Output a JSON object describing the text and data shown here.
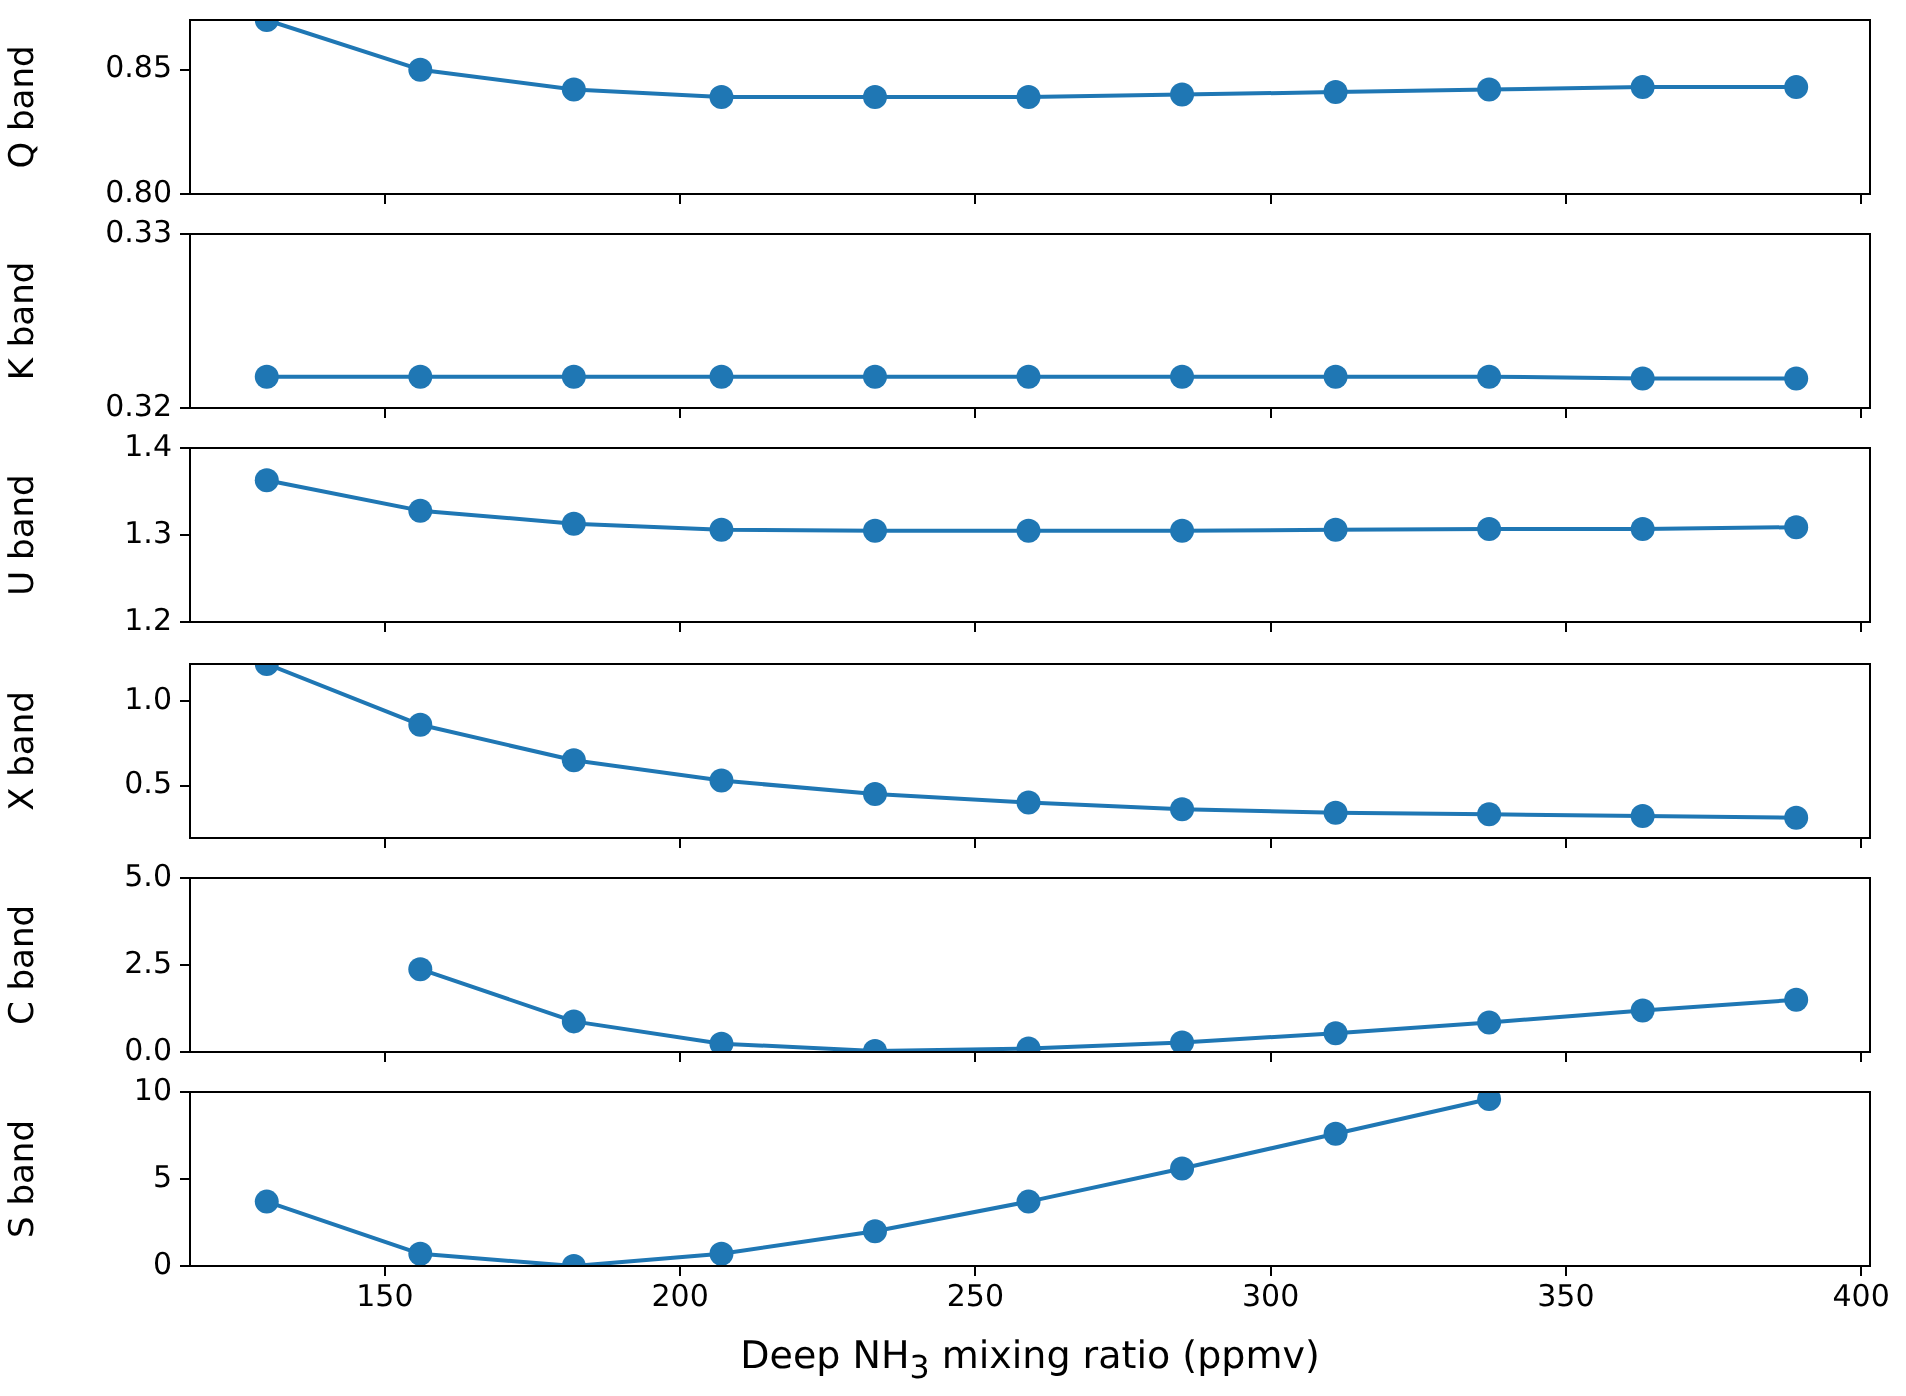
{
  "chart_data": [
    {
      "type": "line",
      "ylabel": "Q band",
      "x": [
        130,
        156,
        182,
        207,
        233,
        259,
        285,
        311,
        337,
        363,
        389
      ],
      "xlim": [
        117,
        401.5
      ],
      "xticks": [
        150,
        200,
        250,
        300,
        350,
        400
      ],
      "ylim": [
        0.8,
        0.87
      ],
      "yticks": [
        {
          "value": 0.8,
          "label": "0.80"
        },
        {
          "value": 0.85,
          "label": "0.85"
        }
      ],
      "tick_labels": "y",
      "grid": false,
      "marker": "circle",
      "legend": false,
      "series": [
        {
          "color": "#1f77b4",
          "values": [
            0.87,
            0.85,
            0.842,
            0.839,
            0.839,
            0.839,
            0.84,
            0.841,
            0.842,
            0.843,
            0.843
          ]
        }
      ]
    },
    {
      "type": "line",
      "ylabel": "K band",
      "x": [
        130,
        156,
        182,
        207,
        233,
        259,
        285,
        311,
        337,
        363,
        389
      ],
      "xlim": [
        117,
        401.5
      ],
      "xticks": [
        150,
        200,
        250,
        300,
        350,
        400
      ],
      "ylim": [
        0.32,
        0.33
      ],
      "yticks": [
        0.32,
        0.33
      ],
      "tick_labels": "y",
      "grid": false,
      "marker": "circle",
      "legend": false,
      "series": [
        {
          "color": "#1f77b4",
          "values": [
            0.3218,
            0.3218,
            0.3218,
            0.3218,
            0.3218,
            0.3218,
            0.3218,
            0.3218,
            0.3218,
            0.3217,
            0.3217
          ]
        }
      ]
    },
    {
      "type": "line",
      "ylabel": "U band",
      "x": [
        130,
        156,
        182,
        207,
        233,
        259,
        285,
        311,
        337,
        363,
        389
      ],
      "xlim": [
        117,
        401.5
      ],
      "xticks": [
        150,
        200,
        250,
        300,
        350,
        400
      ],
      "ylim": [
        1.2,
        1.4
      ],
      "yticks": [
        1.2,
        1.3,
        1.4
      ],
      "tick_labels": "y",
      "grid": false,
      "marker": "circle",
      "legend": false,
      "series": [
        {
          "color": "#1f77b4",
          "values": [
            1.363,
            1.328,
            1.313,
            1.306,
            1.305,
            1.305,
            1.305,
            1.306,
            1.307,
            1.307,
            1.309
          ]
        }
      ]
    },
    {
      "type": "line",
      "ylabel": "X band",
      "x": [
        130,
        156,
        182,
        207,
        233,
        259,
        285,
        311,
        337,
        363,
        389
      ],
      "xlim": [
        117,
        401.5
      ],
      "xticks": [
        150,
        200,
        250,
        300,
        350,
        400
      ],
      "ylim": [
        0.19,
        1.22
      ],
      "yticks": [
        0.5,
        {
          "value": 1,
          "label": "1.0"
        }
      ],
      "tick_labels": "y",
      "grid": false,
      "marker": "circle",
      "legend": false,
      "series": [
        {
          "color": "#1f77b4",
          "values": [
            1.22,
            0.86,
            0.65,
            0.53,
            0.45,
            0.4,
            0.36,
            0.34,
            0.33,
            0.32,
            0.31
          ]
        }
      ]
    },
    {
      "type": "line",
      "ylabel": "C band",
      "x": [
        156,
        182,
        207,
        233,
        259,
        285,
        311,
        337,
        363,
        389
      ],
      "xlim": [
        117,
        401.5
      ],
      "xticks": [
        150,
        200,
        250,
        300,
        350,
        400
      ],
      "ylim": [
        0,
        5
      ],
      "yticks": [
        {
          "value": 0,
          "label": "0.0"
        },
        2.5,
        {
          "value": 5,
          "label": "5.0"
        }
      ],
      "tick_labels": "y",
      "grid": false,
      "marker": "circle",
      "legend": false,
      "series": [
        {
          "color": "#1f77b4",
          "values": [
            2.38,
            0.88,
            0.24,
            0.03,
            0.1,
            0.27,
            0.54,
            0.85,
            1.19,
            1.5
          ]
        }
      ]
    },
    {
      "type": "line",
      "ylabel": "S band",
      "xlabel": "Deep NH$_{3}$ mixing ratio (ppmv)",
      "x": [
        130,
        156,
        182,
        207,
        233,
        259,
        285,
        311,
        337
      ],
      "xlim": [
        117,
        401.5
      ],
      "xticks": [
        150,
        200,
        250,
        300,
        350,
        400
      ],
      "ylim": [
        0,
        10
      ],
      "yticks": [
        0,
        5,
        10
      ],
      "grid": false,
      "marker": "circle",
      "legend": false,
      "series": [
        {
          "color": "#1f77b4",
          "values": [
            3.7,
            0.7,
            0,
            0.7,
            2.0,
            3.7,
            5.6,
            7.6,
            9.6
          ]
        }
      ]
    }
  ]
}
